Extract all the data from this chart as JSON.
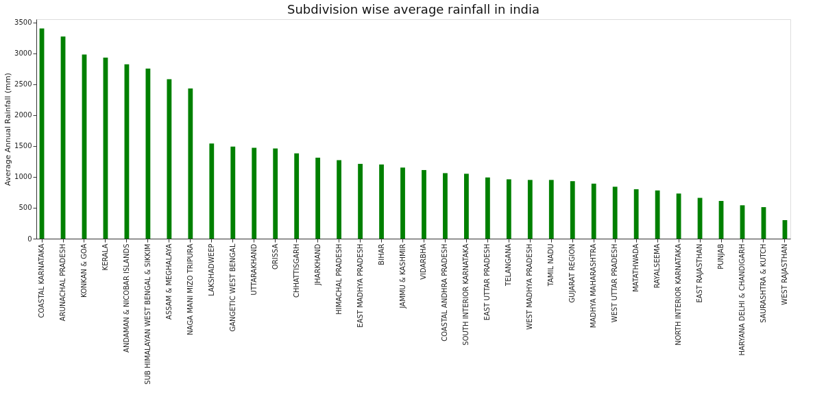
{
  "chart_data": {
    "type": "bar",
    "title": "Subdivision wise average rainfall in india",
    "ylabel": "Average Annual Rainfall (mm)",
    "categories": [
      "COASTAL KARNATAKA",
      "ARUNACHAL PRADESH",
      "KONKAN & GOA",
      "KERALA",
      "ANDAMAN & NICOBAR ISLANDS",
      "SUB HIMALAYAN WEST BENGAL & SIKKIM",
      "ASSAM & MEGHALAYA",
      "NAGA MANI MIZO TRIPURA",
      "LAKSHADWEEP",
      "GANGETIC WEST BENGAL",
      "UTTARAKHAND",
      "ORISSA",
      "CHHATTISGARH",
      "JHARKHAND",
      "HIMACHAL PRADESH",
      "EAST MADHYA PRADESH",
      "BIHAR",
      "JAMMU & KASHMIR",
      "VIDARBHA",
      "COASTAL ANDHRA PRADESH",
      "SOUTH INTERIOR KARNATAKA",
      "EAST UTTAR PRADESH",
      "TELANGANA",
      "WEST MADHYA PRADESH",
      "TAMIL NADU",
      "GUJARAT REGION",
      "MADHYA MAHARASHTRA",
      "WEST UTTAR PRADESH",
      "MATATHWADA",
      "RAYALSEEMA",
      "NORTH INTERIOR KARNATAKA",
      "EAST RAJASTHAN",
      "PUNJAB",
      "HARYANA DELHI & CHANDIGARH",
      "SAURASHTRA & KUTCH",
      "WEST RAJASTHAN"
    ],
    "series": [
      {
        "color": "#008000",
        "values": [
          3400,
          3270,
          2980,
          2930,
          2820,
          2750,
          2580,
          2430,
          1540,
          1490,
          1470,
          1460,
          1380,
          1310,
          1270,
          1210,
          1200,
          1150,
          1110,
          1060,
          1050,
          990,
          960,
          950,
          950,
          930,
          890,
          840,
          800,
          780,
          730,
          660,
          610,
          540,
          510,
          300
        ]
      }
    ],
    "ylim": [
      0,
      3550
    ],
    "yticks": [
      0,
      500,
      1000,
      1500,
      2000,
      2500,
      3000,
      3500
    ],
    "grid": false,
    "legend": false
  }
}
